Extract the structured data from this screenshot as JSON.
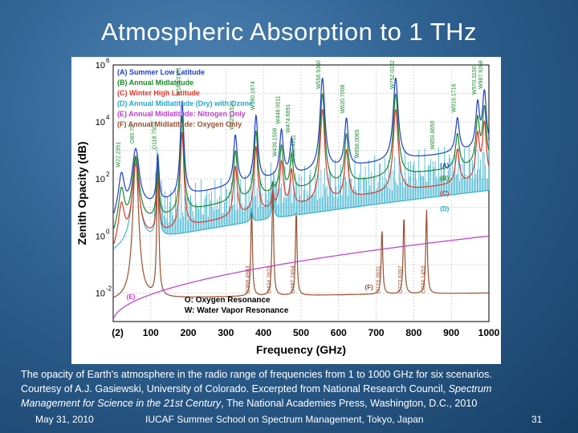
{
  "slide": {
    "title": "Atmospheric Absorption to 1 THz",
    "caption_line1": "The opacity of Earth's atmosphere in the radio range of frequencies from 1 to 1000 GHz for six scenarios.",
    "caption_line2": "Courtesy of A.J. Gasiewski, University of Colorado. Excerpted from National Research Council, ",
    "caption_italic1": "Spectrum",
    "caption_italic2": "Management for Science in the 21st Century",
    "caption_line3_rest": ",  The National Academies Press, Washington, D.C., 2010",
    "footer_date": "May 31, 2010",
    "footer_event": "IUCAF Summer School on Spectrum Management, Tokyo, Japan",
    "footer_page": "31"
  },
  "chart_data": {
    "type": "line",
    "title": "",
    "xlabel": "Frequency (GHz)",
    "ylabel": "Zenith Opacity (dB)",
    "xlim": [
      0,
      1000
    ],
    "ylim_log10": [
      -3,
      6
    ],
    "y_scale": "log",
    "grid": true,
    "legend_position": "top-left",
    "x_ticks": [
      "(2)",
      "100",
      "200",
      "300",
      "400",
      "500",
      "600",
      "700",
      "800",
      "900",
      "1000"
    ],
    "y_tick_labels": [
      {
        "exp": -2,
        "label": "10",
        "sup": "-2"
      },
      {
        "exp": 0,
        "label": "10",
        "sup": "0"
      },
      {
        "exp": 2,
        "label": "10",
        "sup": "2"
      },
      {
        "exp": 4,
        "label": "10",
        "sup": "4"
      },
      {
        "exp": 6,
        "label": "10",
        "sup": "6"
      }
    ],
    "series": [
      {
        "name": "(A) Summer Low Latitude",
        "color": "#1f3fc8",
        "tag": "(A)",
        "offset": 0.55
      },
      {
        "name": "(B) Annual Midlatitude",
        "color": "#1a8a2a",
        "tag": "(B)",
        "offset": 0.0
      },
      {
        "name": "(C) Winter High Latitude",
        "color": "#e0382a",
        "tag": "(C)",
        "offset": -0.55
      },
      {
        "name": "(D) Annual Midlatitude (Dry) with Ozone",
        "color": "#22a8c8",
        "tag": "(D)"
      },
      {
        "name": "(E) Annual Midlatitude: Nitrogen Only",
        "color": "#c03ad0",
        "tag": "(E)"
      },
      {
        "name": "(F) Annual Midlatitude: Oxygen Only",
        "color": "#9a5030",
        "tag": "(F)"
      }
    ],
    "line_labels": [
      {
        "text": "W22.2351",
        "x": 22,
        "color": "#1a8a2a"
      },
      {
        "text": "O60.70",
        "x": 60,
        "color": "#1a8a2a"
      },
      {
        "text": "O118.7503",
        "x": 119,
        "color": "#1a8a2a"
      },
      {
        "text": "W183.3101",
        "x": 183,
        "color": "#1a8a2a"
      },
      {
        "text": "W325.1529",
        "x": 325,
        "color": "#1a8a2a"
      },
      {
        "text": "W380.1974",
        "x": 380,
        "color": "#1a8a2a"
      },
      {
        "text": "W439.1508",
        "x": 439,
        "color": "#1a8a2a"
      },
      {
        "text": "W448.0011",
        "x": 448,
        "color": "#1a8a2a"
      },
      {
        "text": "W474.6891",
        "x": 474,
        "color": "#1a8a2a"
      },
      {
        "text": "W488.4911",
        "x": 488,
        "color": "#1a8a2a"
      },
      {
        "text": "W556.9360",
        "x": 556,
        "color": "#1a8a2a"
      },
      {
        "text": "W620.7008",
        "x": 620,
        "color": "#1a8a2a"
      },
      {
        "text": "W658.0065",
        "x": 658,
        "color": "#1a8a2a"
      },
      {
        "text": "W752.0332",
        "x": 752,
        "color": "#1a8a2a"
      },
      {
        "text": "W859.8650",
        "x": 859,
        "color": "#1a8a2a"
      },
      {
        "text": "W916.1716",
        "x": 916,
        "color": "#1a8a2a"
      },
      {
        "text": "W970.3150",
        "x": 970,
        "color": "#1a8a2a"
      },
      {
        "text": "W987.9268",
        "x": 987,
        "color": "#1a8a2a"
      },
      {
        "text": "O368.4983",
        "x": 368,
        "color": "#9a5030"
      },
      {
        "text": "O424.7631",
        "x": 424,
        "color": "#9a5030"
      },
      {
        "text": "O487.2494",
        "x": 487,
        "color": "#9a5030"
      },
      {
        "text": "O715.3931",
        "x": 715,
        "color": "#9a5030"
      },
      {
        "text": "O773.8397",
        "x": 773,
        "color": "#9a5030"
      },
      {
        "text": "O834.1453",
        "x": 834,
        "color": "#9a5030"
      }
    ],
    "annotations": [
      "O: Oxygen Resonance",
      "W: Water Vapor Resonance"
    ],
    "curve_tags": [
      {
        "tag": "(A)",
        "x": 870,
        "color": "#1f3fc8"
      },
      {
        "tag": "(B)",
        "x": 870,
        "color": "#1a8a2a"
      },
      {
        "tag": "(C)",
        "x": 870,
        "color": "#e0382a"
      },
      {
        "tag": "(D)",
        "x": 870,
        "color": "#22a8c8"
      },
      {
        "tag": "(E)",
        "x": 100,
        "color": "#c03ad0"
      },
      {
        "tag": "(F)",
        "x": 670,
        "color": "#9a5030"
      }
    ]
  }
}
